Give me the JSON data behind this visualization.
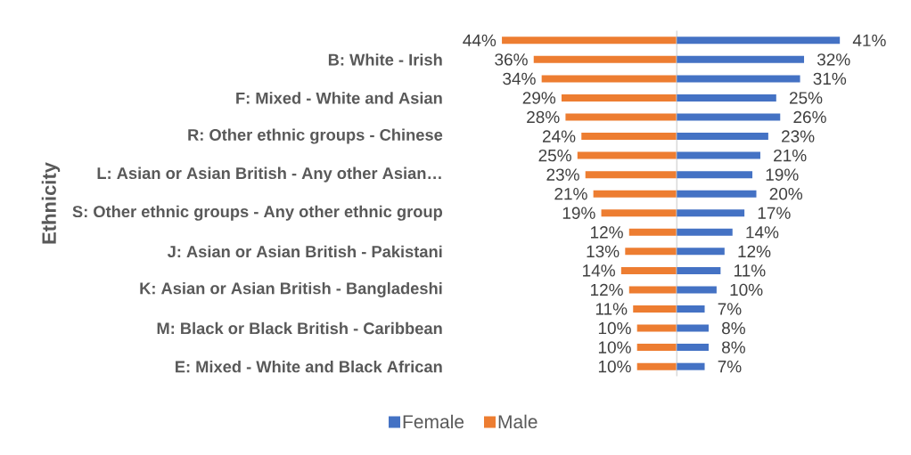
{
  "chart_data": [
    {
      "type": "bar",
      "orientation": "horizontal",
      "ylabel": "Ethnicity",
      "categories": [
        null,
        "B: White - Irish",
        null,
        "F: Mixed - White and Asian",
        null,
        "R: Other ethnic groups - Chinese",
        null,
        "L: Asian or Asian British - Any other Asian…",
        null,
        "S: Other ethnic groups - Any other ethnic group",
        null,
        "J: Asian or Asian British - Pakistani",
        null,
        "K: Asian or Asian British - Bangladeshi",
        null,
        "M: Black or Black British - Caribbean",
        null,
        "E: Mixed - White and Black African"
      ],
      "series": [
        {
          "name": "Male",
          "color": "#ed7d31",
          "values": [
            44,
            36,
            34,
            29,
            28,
            24,
            25,
            23,
            21,
            19,
            12,
            13,
            14,
            12,
            11,
            10,
            10,
            10
          ],
          "value_labels": [
            "44%",
            "36%",
            "34%",
            "29%",
            "28%",
            "24%",
            "25%",
            "23%",
            "21%",
            "19%",
            "12%",
            "13%",
            "14%",
            "12%",
            "11%",
            "10%",
            "10%",
            "10%"
          ]
        }
      ],
      "xlim": [
        44,
        0
      ],
      "legend": "bottom",
      "tick_labels": "y"
    },
    {
      "type": "bar",
      "orientation": "horizontal",
      "categories": [
        null,
        null,
        null,
        null,
        null,
        null,
        null,
        null,
        null,
        null,
        null,
        null,
        null,
        null,
        null,
        null,
        null,
        null
      ],
      "series": [
        {
          "name": "Female",
          "color": "#4472c4",
          "values": [
            41,
            32,
            31,
            25,
            26,
            23,
            21,
            19,
            20,
            17,
            14,
            12,
            11,
            10,
            7,
            8,
            8,
            7
          ],
          "value_labels": [
            "41%",
            "32%",
            "31%",
            "25%",
            "26%",
            "23%",
            "21%",
            "19%",
            "20%",
            "17%",
            "14%",
            "12%",
            "11%",
            "10%",
            "7%",
            "8%",
            "8%",
            "7%"
          ]
        }
      ],
      "xlim": [
        0,
        41
      ],
      "legend": "bottom",
      "tick_labels": false
    }
  ]
}
